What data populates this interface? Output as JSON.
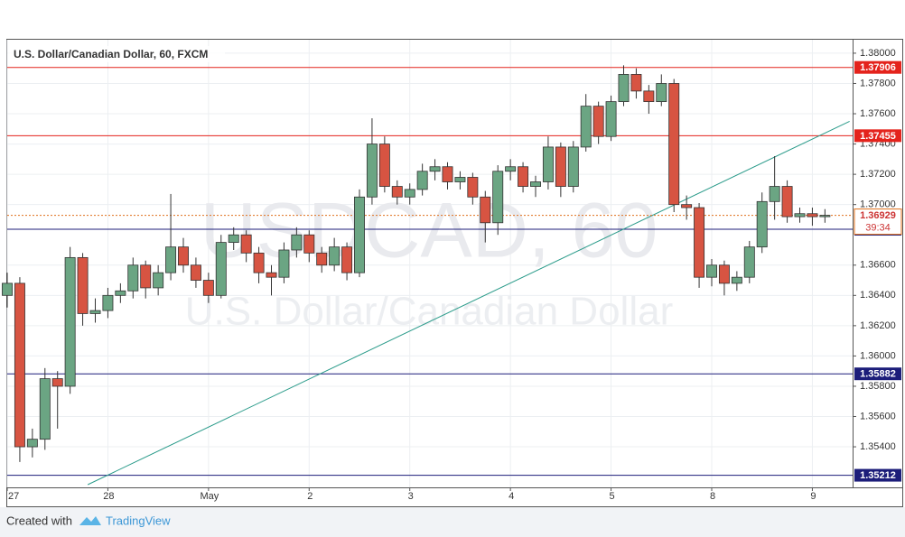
{
  "chart_data": {
    "type": "candlestick",
    "title": "U.S. Dollar/Canadian Dollar, 60, FXCM",
    "watermark": "USDCAD, 60",
    "watermark_subtitle": "U.S. Dollar/Canadian Dollar",
    "xlim": [
      0,
      8.4
    ],
    "xticks": [
      {
        "value": 0,
        "label": "27"
      },
      {
        "value": 1,
        "label": "28"
      },
      {
        "value": 2,
        "label": "May"
      },
      {
        "value": 3,
        "label": "2"
      },
      {
        "value": 4,
        "label": "3"
      },
      {
        "value": 5,
        "label": "4"
      },
      {
        "value": 6,
        "label": "5"
      },
      {
        "value": 7,
        "label": "8"
      },
      {
        "value": 8,
        "label": "9"
      }
    ],
    "ylim": [
      1.35144,
      1.38089
    ],
    "yticks": [
      {
        "value": 1.354,
        "label": "1.35400"
      },
      {
        "value": 1.356,
        "label": "1.35600"
      },
      {
        "value": 1.358,
        "label": "1.35800"
      },
      {
        "value": 1.36,
        "label": "1.36000"
      },
      {
        "value": 1.362,
        "label": "1.36200"
      },
      {
        "value": 1.364,
        "label": "1.36400"
      },
      {
        "value": 1.366,
        "label": "1.36600"
      },
      {
        "value": 1.37,
        "label": "1.37000"
      },
      {
        "value": 1.372,
        "label": "1.37200"
      },
      {
        "value": 1.374,
        "label": "1.37400"
      },
      {
        "value": 1.376,
        "label": "1.37600"
      },
      {
        "value": 1.378,
        "label": "1.37800"
      },
      {
        "value": 1.38,
        "label": "1.38000"
      }
    ],
    "grid": true,
    "up_color": "#6ba583",
    "down_color": "#d75442",
    "candles": {
      "x": [
        0,
        0.125,
        0.25,
        0.375,
        0.5,
        0.625,
        0.75,
        0.875,
        1,
        1.125,
        1.25,
        1.375,
        1.5,
        1.625,
        1.75,
        1.875,
        2,
        2.125,
        2.25,
        2.375,
        2.5,
        2.625,
        2.75,
        2.875,
        3,
        3.125,
        3.25,
        3.375,
        3.5,
        3.625,
        3.75,
        3.875,
        4,
        4.125,
        4.25,
        4.375,
        4.5,
        4.625,
        4.75,
        4.875,
        5,
        5.125,
        5.25,
        5.375,
        5.5,
        5.625,
        5.75,
        5.875,
        6,
        6.125,
        6.25,
        6.375,
        6.5,
        6.625,
        6.75,
        6.875,
        7,
        7.125,
        7.25,
        7.375,
        7.5,
        7.625,
        7.75,
        7.875,
        8,
        8.125
      ],
      "open": [
        1.364,
        1.3648,
        1.354,
        1.3545,
        1.3585,
        1.358,
        1.3665,
        1.3628,
        1.363,
        1.364,
        1.3643,
        1.366,
        1.3645,
        1.3655,
        1.3672,
        1.366,
        1.365,
        1.364,
        1.3675,
        1.368,
        1.3668,
        1.3655,
        1.3652,
        1.367,
        1.368,
        1.3668,
        1.366,
        1.3672,
        1.3655,
        1.3705,
        1.374,
        1.3712,
        1.3705,
        1.371,
        1.3722,
        1.3725,
        1.3715,
        1.3718,
        1.3705,
        1.3688,
        1.3722,
        1.3725,
        1.3712,
        1.3715,
        1.3738,
        1.3712,
        1.3738,
        1.3765,
        1.3745,
        1.3768,
        1.3786,
        1.3775,
        1.3768,
        1.378,
        1.37,
        1.3698,
        1.3652,
        1.366,
        1.3648,
        1.3652,
        1.3672,
        1.3702,
        1.3712,
        1.3692,
        1.3694,
        1.3692
      ],
      "high": [
        1.3655,
        1.3652,
        1.3552,
        1.3592,
        1.359,
        1.3672,
        1.3668,
        1.3638,
        1.3645,
        1.3648,
        1.3665,
        1.3663,
        1.366,
        1.3707,
        1.3678,
        1.3665,
        1.3655,
        1.368,
        1.3685,
        1.3683,
        1.3672,
        1.366,
        1.3675,
        1.3685,
        1.3683,
        1.3672,
        1.3678,
        1.3675,
        1.371,
        1.3757,
        1.3745,
        1.3716,
        1.3714,
        1.3727,
        1.373,
        1.3728,
        1.3722,
        1.3721,
        1.3709,
        1.3726,
        1.373,
        1.3728,
        1.3719,
        1.3745,
        1.3741,
        1.3742,
        1.3773,
        1.3768,
        1.3772,
        1.3792,
        1.379,
        1.3779,
        1.3786,
        1.3783,
        1.3706,
        1.3701,
        1.3664,
        1.3663,
        1.3656,
        1.3676,
        1.3708,
        1.3732,
        1.3716,
        1.3698,
        1.3698,
        1.3697
      ],
      "low": [
        1.3632,
        1.353,
        1.3533,
        1.3538,
        1.3552,
        1.3575,
        1.362,
        1.3622,
        1.3625,
        1.3635,
        1.3638,
        1.3638,
        1.364,
        1.365,
        1.3655,
        1.3645,
        1.3635,
        1.3638,
        1.367,
        1.3662,
        1.3648,
        1.364,
        1.3648,
        1.3665,
        1.3662,
        1.3655,
        1.3656,
        1.365,
        1.3652,
        1.37,
        1.3708,
        1.37,
        1.37,
        1.3706,
        1.3716,
        1.371,
        1.371,
        1.37,
        1.3675,
        1.368,
        1.3716,
        1.3708,
        1.3705,
        1.371,
        1.3705,
        1.3708,
        1.3735,
        1.374,
        1.3742,
        1.3765,
        1.377,
        1.376,
        1.3765,
        1.3695,
        1.369,
        1.3645,
        1.3646,
        1.364,
        1.3643,
        1.3648,
        1.3668,
        1.369,
        1.3688,
        1.3688,
        1.3686,
        1.3688
      ],
      "close": [
        1.3648,
        1.354,
        1.3545,
        1.3585,
        1.358,
        1.3665,
        1.3628,
        1.363,
        1.364,
        1.3643,
        1.366,
        1.3645,
        1.3655,
        1.3672,
        1.366,
        1.365,
        1.364,
        1.3675,
        1.368,
        1.3668,
        1.3655,
        1.3652,
        1.367,
        1.368,
        1.3668,
        1.366,
        1.3672,
        1.3655,
        1.3705,
        1.374,
        1.3712,
        1.3705,
        1.371,
        1.3722,
        1.3725,
        1.3715,
        1.3718,
        1.3705,
        1.3688,
        1.3722,
        1.3725,
        1.3712,
        1.3715,
        1.3738,
        1.3712,
        1.3738,
        1.3765,
        1.3745,
        1.3768,
        1.3786,
        1.3775,
        1.3768,
        1.378,
        1.37,
        1.3698,
        1.3652,
        1.366,
        1.3648,
        1.3652,
        1.3672,
        1.3702,
        1.3712,
        1.3692,
        1.3694,
        1.3692,
        1.36929
      ]
    },
    "levels": [
      {
        "value": 1.37906,
        "color": "#e4231c"
      },
      {
        "value": 1.37455,
        "color": "#e4231c"
      },
      {
        "value": 1.36837,
        "color": "#1c1d7a"
      },
      {
        "value": 1.35882,
        "color": "#1c1d7a"
      },
      {
        "value": 1.35212,
        "color": "#1c1d7a"
      }
    ],
    "last_price": {
      "value": 1.36929,
      "color": "#e0701c",
      "countdown": "39:34"
    },
    "trendline": {
      "x": [
        0.8,
        8.37
      ],
      "values": [
        1.3515,
        1.3755
      ],
      "color": "#2a9b8a"
    }
  },
  "footer": {
    "created": "Created with",
    "brand": "TradingView"
  }
}
